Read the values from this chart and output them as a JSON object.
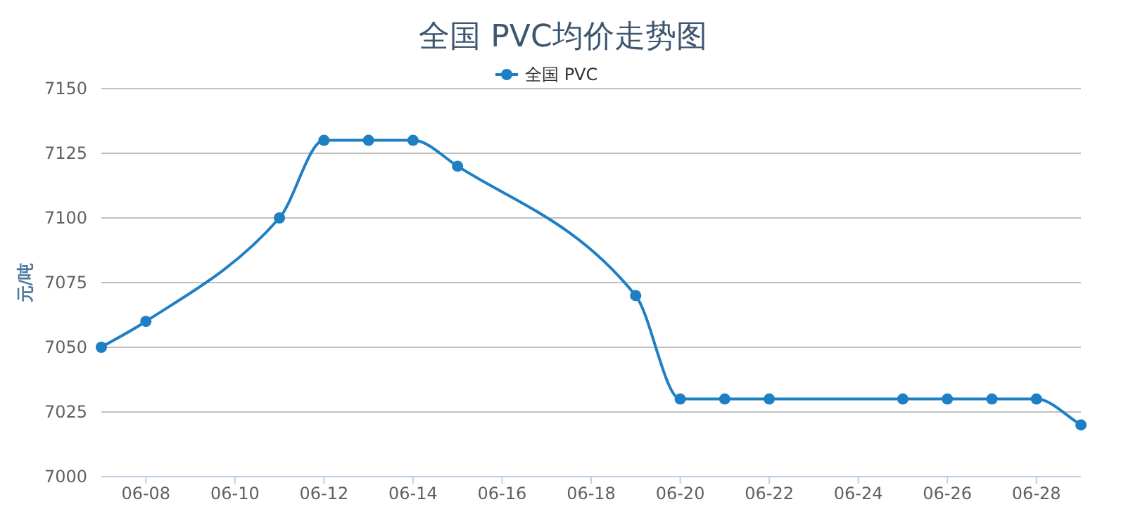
{
  "chart_data": {
    "type": "line",
    "title": "全国 PVC均价走势图",
    "ylabel": "元/吨",
    "x": [
      "--06-07",
      "--06-08",
      "--06-11",
      "--06-12",
      "--06-13",
      "--06-14",
      "--06-15",
      "--06-19",
      "--06-20",
      "--06-21",
      "--06-22",
      "--06-25",
      "--06-26",
      "--06-27",
      "--06-28",
      "--06-29"
    ],
    "series": [
      {
        "name": "全国 PVC",
        "color": "#1f7fc4",
        "values": [
          7050,
          7060,
          7100,
          7130,
          7130,
          7130,
          7120,
          7070,
          7030,
          7030,
          7030,
          7030,
          7030,
          7030,
          7030,
          7020
        ]
      }
    ],
    "xlim": [
      "--06-07",
      "--06-29"
    ],
    "xticks": [
      {
        "value": "--06-08",
        "label": "06-08"
      },
      {
        "value": "--06-10",
        "label": "06-10"
      },
      {
        "value": "--06-12",
        "label": "06-12"
      },
      {
        "value": "--06-14",
        "label": "06-14"
      },
      {
        "value": "--06-16",
        "label": "06-16"
      },
      {
        "value": "--06-18",
        "label": "06-18"
      },
      {
        "value": "--06-20",
        "label": "06-20"
      },
      {
        "value": "--06-22",
        "label": "06-22"
      },
      {
        "value": "--06-24",
        "label": "06-24"
      },
      {
        "value": "--06-26",
        "label": "06-26"
      },
      {
        "value": "--06-28",
        "label": "06-28"
      }
    ],
    "ylim": [
      7000,
      7150
    ],
    "yticks": [
      7000,
      7025,
      7050,
      7075,
      7100,
      7125,
      7150
    ],
    "grid": "y",
    "legend": "top",
    "marker": "circle",
    "line_style": "solid"
  }
}
